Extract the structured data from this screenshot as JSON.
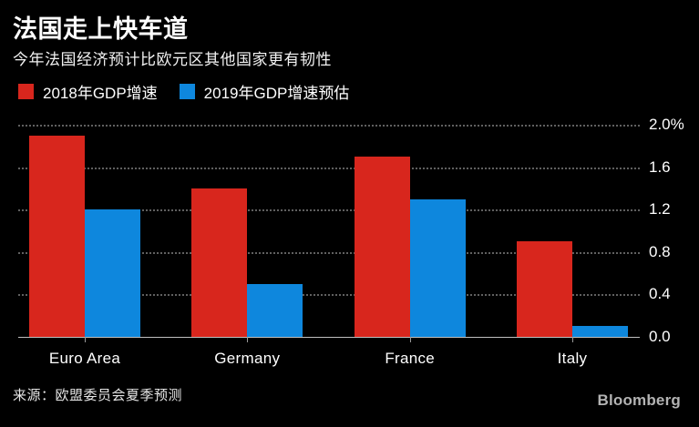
{
  "header": {
    "title": "法国走上快车道",
    "subtitle": "今年法国经济预计比欧元区其他国家更有韧性"
  },
  "legend": {
    "items": [
      {
        "label": "2018年GDP增速",
        "color": "#d8261d"
      },
      {
        "label": "2019年GDP增速预估",
        "color": "#0e87dd"
      }
    ]
  },
  "chart_data": {
    "type": "bar",
    "categories": [
      "Euro Area",
      "Germany",
      "France",
      "Italy"
    ],
    "series": [
      {
        "name": "2018年GDP增速",
        "color": "#d8261d",
        "values": [
          1.9,
          1.4,
          1.7,
          0.9
        ]
      },
      {
        "name": "2019年GDP增速预估",
        "color": "#0e87dd",
        "values": [
          1.2,
          0.5,
          1.3,
          0.1
        ]
      }
    ],
    "title": "法国走上快车道",
    "subtitle": "今年法国经济预计比欧元区其他国家更有韧性",
    "xlabel": "",
    "ylabel": "",
    "ylim": [
      0.0,
      2.0
    ],
    "yticks": [
      {
        "value": 2.0,
        "label": "2.0%"
      },
      {
        "value": 1.6,
        "label": "1.6"
      },
      {
        "value": 1.2,
        "label": "1.2"
      },
      {
        "value": 0.8,
        "label": "0.8"
      },
      {
        "value": 0.4,
        "label": "0.4"
      },
      {
        "value": 0.0,
        "label": "0.0"
      }
    ],
    "grid": "horizontal-dotted",
    "legend_position": "top-left",
    "axis_side": "right"
  },
  "footer": {
    "source": "来源：欧盟委员会夏季预测",
    "brand": "Bloomberg"
  },
  "colors": {
    "background": "#000000",
    "series_red": "#d8261d",
    "series_blue": "#0e87dd",
    "gridline": "#606060",
    "baseline": "#c0c0c0",
    "text": "#ffffff"
  }
}
